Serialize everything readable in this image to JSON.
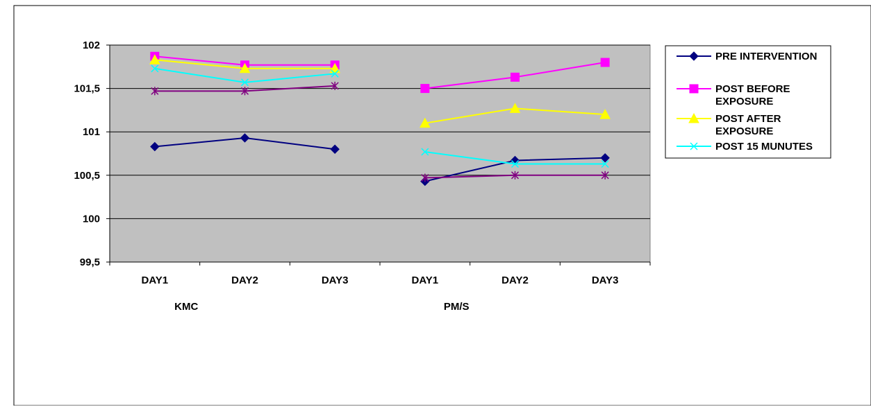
{
  "chart_data": {
    "type": "line",
    "categories": [
      "DAY1",
      "DAY2",
      "DAY3",
      "DAY1",
      "DAY2",
      "DAY3"
    ],
    "groups": [
      {
        "label": "KMC",
        "span": [
          0,
          2
        ]
      },
      {
        "label": "PM/S",
        "span": [
          3,
          5
        ]
      }
    ],
    "ylim": [
      99.5,
      102
    ],
    "yticks": [
      "99,5",
      "100",
      "100,5",
      "101",
      "101,5",
      "102"
    ],
    "ytick_values": [
      99.5,
      100,
      100.5,
      101,
      101.5,
      102
    ],
    "grid": true,
    "legend_position": "right",
    "plot_background": "#c0c0c0",
    "series": [
      {
        "name": "PRE INTERVENTION",
        "color": "#000080",
        "marker": "diamond",
        "values": [
          100.83,
          100.93,
          100.8,
          100.43,
          100.67,
          100.7
        ]
      },
      {
        "name": "POST BEFORE EXPOSURE",
        "color": "#ff00ff",
        "marker": "square",
        "values": [
          101.87,
          101.77,
          101.77,
          101.5,
          101.63,
          101.8
        ]
      },
      {
        "name": "POST AFTER EXPOSURE",
        "color": "#ffff00",
        "marker": "triangle",
        "values": [
          101.83,
          101.73,
          101.73,
          101.1,
          101.27,
          101.2
        ]
      },
      {
        "name": "POST 15 MUNUTES",
        "color": "#00ffff",
        "marker": "x",
        "values": [
          101.73,
          101.57,
          101.67,
          100.77,
          100.63,
          100.63
        ]
      },
      {
        "name": "",
        "color": "#800080",
        "marker": "asterisk",
        "values": [
          101.47,
          101.47,
          101.53,
          100.47,
          100.5,
          100.5
        ]
      }
    ]
  }
}
